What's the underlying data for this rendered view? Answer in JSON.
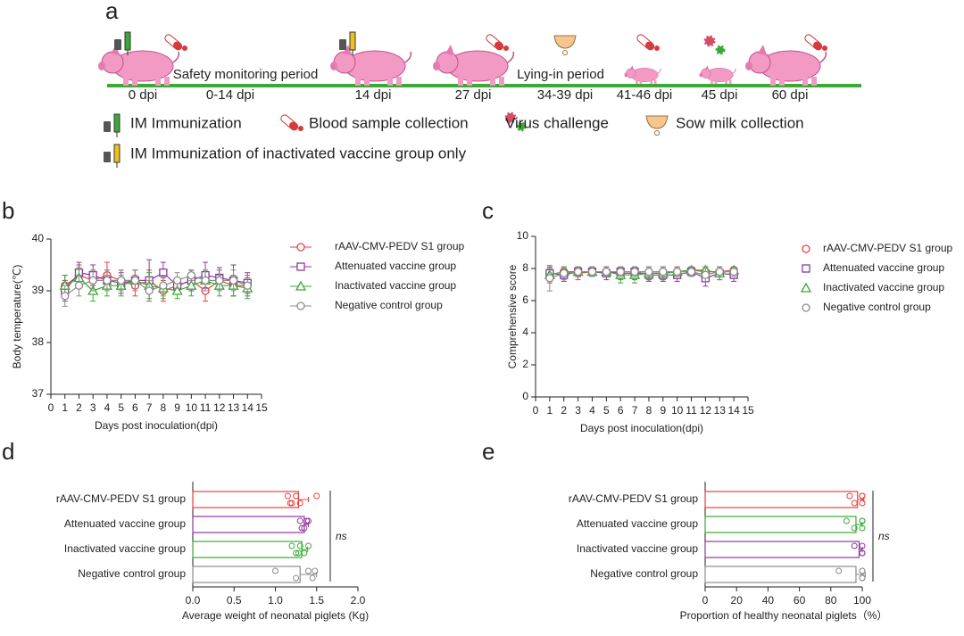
{
  "panel_labels": [
    "a",
    "b",
    "c",
    "d",
    "e"
  ],
  "timeline": {
    "labels": [
      "0 dpi",
      "0-14 dpi",
      "14 dpi",
      "27 dpi",
      "34-39 dpi",
      "41-46 dpi",
      "45 dpi",
      "60 dpi"
    ],
    "periods": [
      "Safety monitoring period",
      "Lying-in period"
    ],
    "legend": [
      "IM Immunization",
      "Blood sample collection",
      "Virus challenge",
      "Sow milk collection",
      "IM Immunization of inactivated vaccine group only"
    ]
  },
  "chart_data": [
    {
      "type": "line",
      "xlabel": "Days post inoculation(dpi)",
      "ylabel": "Body temperature(℃)",
      "x": [
        1,
        2,
        3,
        4,
        5,
        6,
        7,
        8,
        9,
        10,
        11,
        12,
        13,
        14
      ],
      "xlim": [
        0,
        15
      ],
      "xticks": [
        0,
        1,
        2,
        3,
        4,
        5,
        6,
        7,
        8,
        9,
        10,
        11,
        12,
        13,
        14,
        15
      ],
      "ylim": [
        37,
        40
      ],
      "yticks": [
        37,
        38,
        39,
        40
      ],
      "series": [
        {
          "name": "rAAV-CMV-PEDV S1 group",
          "color": "#e8413c",
          "marker": "circle",
          "values": [
            39.1,
            39.3,
            39.2,
            39.3,
            39.2,
            39.1,
            39.2,
            39.0,
            39.1,
            39.2,
            39.0,
            39.2,
            39.1,
            39.1
          ],
          "errors": [
            0.2,
            0.2,
            0.2,
            0.25,
            0.2,
            0.2,
            0.2,
            0.2,
            0.15,
            0.2,
            0.2,
            0.2,
            0.2,
            0.2
          ]
        },
        {
          "name": "Attenuated vaccine group",
          "color": "#8e3a9e",
          "marker": "square",
          "values": [
            39.0,
            39.35,
            39.3,
            39.2,
            39.15,
            39.2,
            39.2,
            39.35,
            39.1,
            39.2,
            39.3,
            39.25,
            39.2,
            39.15
          ],
          "errors": [
            0.2,
            0.2,
            0.2,
            0.2,
            0.2,
            0.2,
            0.4,
            0.2,
            0.15,
            0.2,
            0.25,
            0.2,
            0.3,
            0.2
          ]
        },
        {
          "name": "Inactivated vaccine group",
          "color": "#3aaa35",
          "marker": "triangle",
          "values": [
            39.1,
            39.25,
            39.0,
            39.1,
            39.1,
            39.2,
            39.1,
            39.05,
            39.0,
            39.1,
            39.2,
            39.1,
            39.1,
            39.05
          ],
          "errors": [
            0.2,
            0.2,
            0.2,
            0.2,
            0.2,
            0.2,
            0.25,
            0.2,
            0.15,
            0.2,
            0.2,
            0.2,
            0.2,
            0.2
          ]
        },
        {
          "name": "Negative control group",
          "color": "#8c8c8c",
          "marker": "circle",
          "values": [
            38.9,
            39.1,
            39.2,
            39.2,
            39.2,
            39.2,
            39.0,
            39.1,
            39.2,
            39.3,
            39.2,
            39.2,
            39.2,
            39.1
          ],
          "errors": [
            0.2,
            0.2,
            0.2,
            0.2,
            0.2,
            0.2,
            0.2,
            0.2,
            0.15,
            0.1,
            0.2,
            0.2,
            0.2,
            0.2
          ]
        }
      ]
    },
    {
      "type": "line",
      "xlabel": "Days post inoculation(dpi)",
      "ylabel": "Comprehensive score",
      "x": [
        1,
        2,
        3,
        4,
        5,
        6,
        7,
        8,
        9,
        10,
        11,
        12,
        13,
        14
      ],
      "xlim": [
        0,
        15
      ],
      "xticks": [
        0,
        1,
        2,
        3,
        4,
        5,
        6,
        7,
        8,
        9,
        10,
        11,
        12,
        13,
        14,
        15
      ],
      "ylim": [
        0,
        10
      ],
      "yticks": [
        0,
        2,
        4,
        6,
        8,
        10
      ],
      "series": [
        {
          "name": "rAAV-CMV-PEDV S1 group",
          "color": "#e8413c",
          "marker": "circle",
          "values": [
            7.6,
            7.8,
            7.7,
            7.8,
            7.8,
            7.7,
            7.7,
            7.7,
            7.7,
            7.8,
            7.9,
            7.8,
            7.8,
            7.9
          ],
          "errors": [
            0.5,
            0.3,
            0.4,
            0.3,
            0.3,
            0.4,
            0.4,
            0.4,
            0.4,
            0.3,
            0.2,
            0.3,
            0.3,
            0.2
          ]
        },
        {
          "name": "Attenuated vaccine group",
          "color": "#8e3a9e",
          "marker": "square",
          "values": [
            7.7,
            7.6,
            7.8,
            7.8,
            7.7,
            7.8,
            7.8,
            7.6,
            7.6,
            7.6,
            7.8,
            7.4,
            7.7,
            7.6
          ],
          "errors": [
            0.4,
            0.4,
            0.3,
            0.3,
            0.4,
            0.3,
            0.3,
            0.4,
            0.4,
            0.4,
            0.3,
            0.5,
            0.4,
            0.4
          ]
        },
        {
          "name": "Inactivated vaccine group",
          "color": "#3aaa35",
          "marker": "triangle",
          "values": [
            7.6,
            7.8,
            7.8,
            7.8,
            7.8,
            7.6,
            7.6,
            7.7,
            7.7,
            7.8,
            7.9,
            7.9,
            7.7,
            7.9
          ],
          "errors": [
            0.4,
            0.3,
            0.3,
            0.3,
            0.3,
            0.5,
            0.5,
            0.4,
            0.4,
            0.3,
            0.2,
            0.2,
            0.4,
            0.2
          ]
        },
        {
          "name": "Negative control group",
          "color": "#8c8c8c",
          "marker": "circle",
          "values": [
            7.4,
            7.7,
            7.8,
            7.8,
            7.8,
            7.8,
            7.8,
            7.8,
            7.8,
            7.8,
            7.8,
            7.6,
            7.8,
            7.8
          ],
          "errors": [
            0.8,
            0.4,
            0.3,
            0.3,
            0.3,
            0.3,
            0.3,
            0.3,
            0.3,
            0.3,
            0.3,
            0.4,
            0.3,
            0.3
          ]
        }
      ]
    },
    {
      "type": "barh",
      "xlabel": "Average weight of neonatal piglets (Kg)",
      "annotation": "ns",
      "categories": [
        "rAAV-CMV-PEDV S1 group",
        "Attenuated vaccine group",
        "Inactivated vaccine group",
        "Negative control group"
      ],
      "colors": [
        "#e8413c",
        "#8e3a9e",
        "#3aaa35",
        "#8c8c8c"
      ],
      "values": [
        1.28,
        1.35,
        1.32,
        1.3
      ],
      "errors": [
        0.12,
        0.05,
        0.07,
        0.2
      ],
      "points": [
        [
          1.15,
          1.2,
          1.25,
          1.3,
          1.5,
          1.18
        ],
        [
          1.3,
          1.35,
          1.4,
          1.32,
          1.38
        ],
        [
          1.2,
          1.25,
          1.3,
          1.35,
          1.4,
          1.28
        ],
        [
          1.0,
          1.25,
          1.4,
          1.45,
          1.48
        ]
      ],
      "xlim": [
        0,
        2
      ],
      "xticks": [
        {
          "value": 0,
          "label": "0.0"
        },
        0.5,
        {
          "value": 1,
          "label": "1.0"
        },
        1.5,
        {
          "value": 2,
          "label": "2.0"
        }
      ]
    },
    {
      "type": "barh",
      "xlabel": "Proportion of healthy neonatal piglets（%）",
      "annotation": "ns",
      "categories": [
        "rAAV-CMV-PEDV S1 group",
        "Attenuated vaccine group",
        "Inactivated vaccine group",
        "Negative control group"
      ],
      "colors": [
        "#e8413c",
        "#3aaa35",
        "#8e3a9e",
        "#8c8c8c"
      ],
      "values": [
        97,
        96,
        98,
        96
      ],
      "errors": [
        4,
        4,
        2,
        6
      ],
      "points": [
        [
          92,
          95,
          100,
          100,
          100
        ],
        [
          90,
          95,
          100,
          100,
          100
        ],
        [
          95,
          100,
          100,
          100
        ],
        [
          85,
          100,
          100,
          100,
          100
        ]
      ],
      "xlim": [
        0,
        100
      ],
      "xticks": [
        0,
        20,
        40,
        60,
        80,
        100
      ]
    }
  ]
}
